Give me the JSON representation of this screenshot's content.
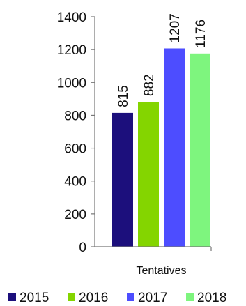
{
  "chart_data": {
    "type": "bar",
    "categories": [
      "Tentatives"
    ],
    "series": [
      {
        "name": "2015",
        "values": [
          815
        ],
        "color": "#1c0f7c"
      },
      {
        "name": "2016",
        "values": [
          882
        ],
        "color": "#84d500"
      },
      {
        "name": "2017",
        "values": [
          1207
        ],
        "color": "#4d4dff"
      },
      {
        "name": "2018",
        "values": [
          1176
        ],
        "color": "#7ef57e"
      }
    ],
    "ylim": [
      0,
      1400
    ],
    "yticks": [
      0,
      200,
      400,
      600,
      800,
      1000,
      1200,
      1400
    ],
    "grid": false,
    "legend_position": "bottom",
    "data_labels": true,
    "data_label_orientation": "vertical"
  }
}
